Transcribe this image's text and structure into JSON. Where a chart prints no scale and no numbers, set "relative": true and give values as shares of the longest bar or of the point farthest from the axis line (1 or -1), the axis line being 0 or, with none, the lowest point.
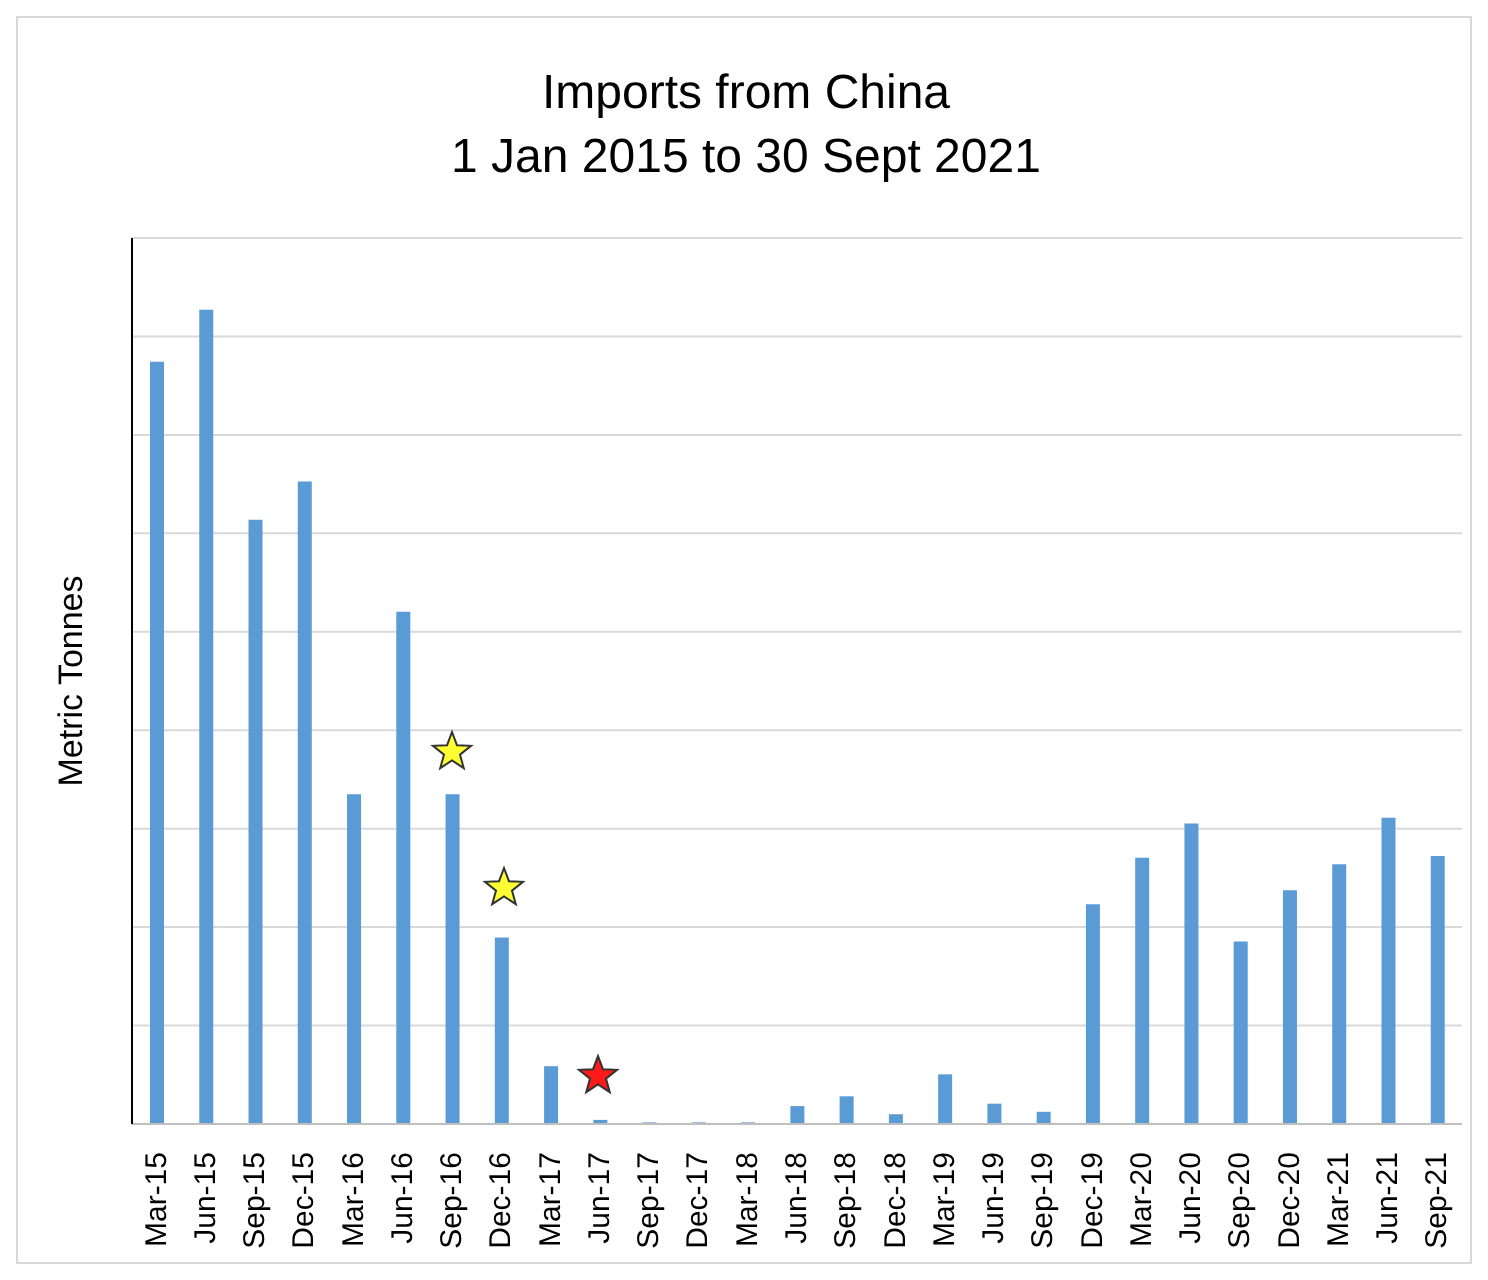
{
  "chart_data": {
    "type": "bar",
    "title": "Imports from China\n1 Jan 2015 to 30 Sept 2021",
    "ylabel": "Metric Tonnes",
    "relative": true,
    "grid": "y",
    "legend": false,
    "color": "#5b9bd5",
    "categories": [
      "Mar-15",
      "Jun-15",
      "Sep-15",
      "Dec-15",
      "Mar-16",
      "Jun-16",
      "Sep-16",
      "Dec-16",
      "Mar-17",
      "Jun-17",
      "Sep-17",
      "Dec-17",
      "Mar-18",
      "Jun-18",
      "Sep-18",
      "Dec-18",
      "Mar-19",
      "Jun-19",
      "Sep-19",
      "Dec-19",
      "Mar-20",
      "Jun-20",
      "Sep-20",
      "Dec-20",
      "Mar-21",
      "Jun-21",
      "Sep-21"
    ],
    "values": [
      0.936,
      1,
      0.742,
      0.789,
      0.405,
      0.629,
      0.405,
      0.229,
      0.071,
      0.005,
      0.002,
      0.002,
      0.002,
      0.022,
      0.034,
      0.012,
      0.061,
      0.025,
      0.015,
      0.27,
      0.327,
      0.369,
      0.224,
      0.287,
      0.319,
      0.376,
      0.329
    ]
  }
}
